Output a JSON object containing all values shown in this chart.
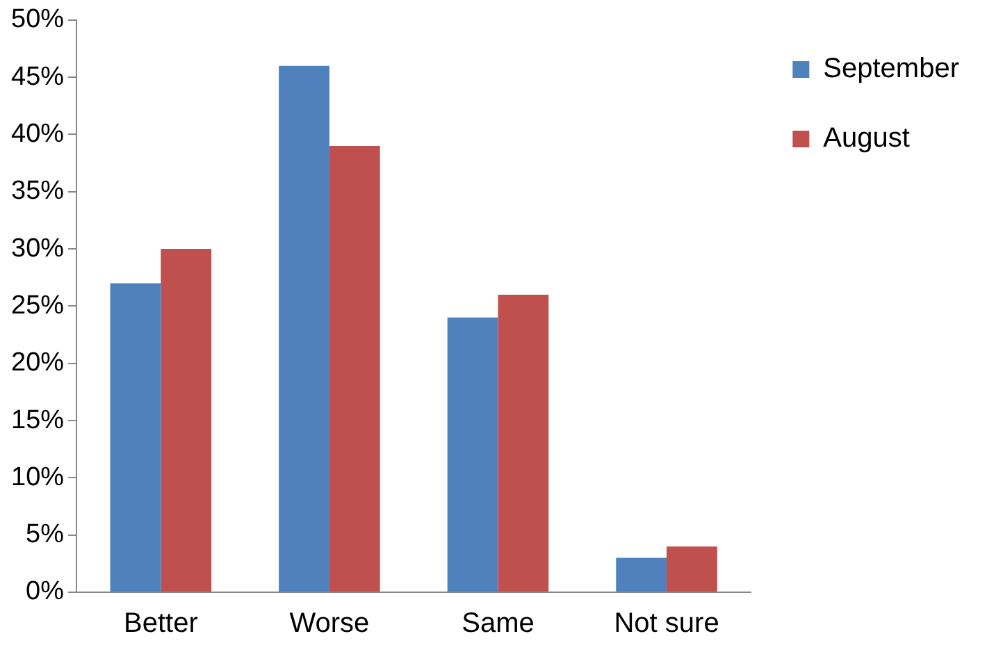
{
  "chart_data": {
    "type": "bar",
    "categories": [
      "Better",
      "Worse",
      "Same",
      "Not sure"
    ],
    "series": [
      {
        "name": "September",
        "color": "#4f81bd",
        "values": [
          27,
          46,
          24,
          3
        ]
      },
      {
        "name": "August",
        "color": "#c0504d",
        "values": [
          30,
          39,
          26,
          4
        ]
      }
    ],
    "ylim": [
      0,
      50
    ],
    "yticks": [
      {
        "value": 0,
        "label": "0%"
      },
      {
        "value": 5,
        "label": "5%"
      },
      {
        "value": 10,
        "label": "10%"
      },
      {
        "value": 15,
        "label": "15%"
      },
      {
        "value": 20,
        "label": "20%"
      },
      {
        "value": 25,
        "label": "25%"
      },
      {
        "value": 30,
        "label": "30%"
      },
      {
        "value": 35,
        "label": "35%"
      },
      {
        "value": 40,
        "label": "40%"
      },
      {
        "value": 45,
        "label": "45%"
      },
      {
        "value": 50,
        "label": "50%"
      }
    ],
    "grid": false,
    "legend": "right"
  }
}
